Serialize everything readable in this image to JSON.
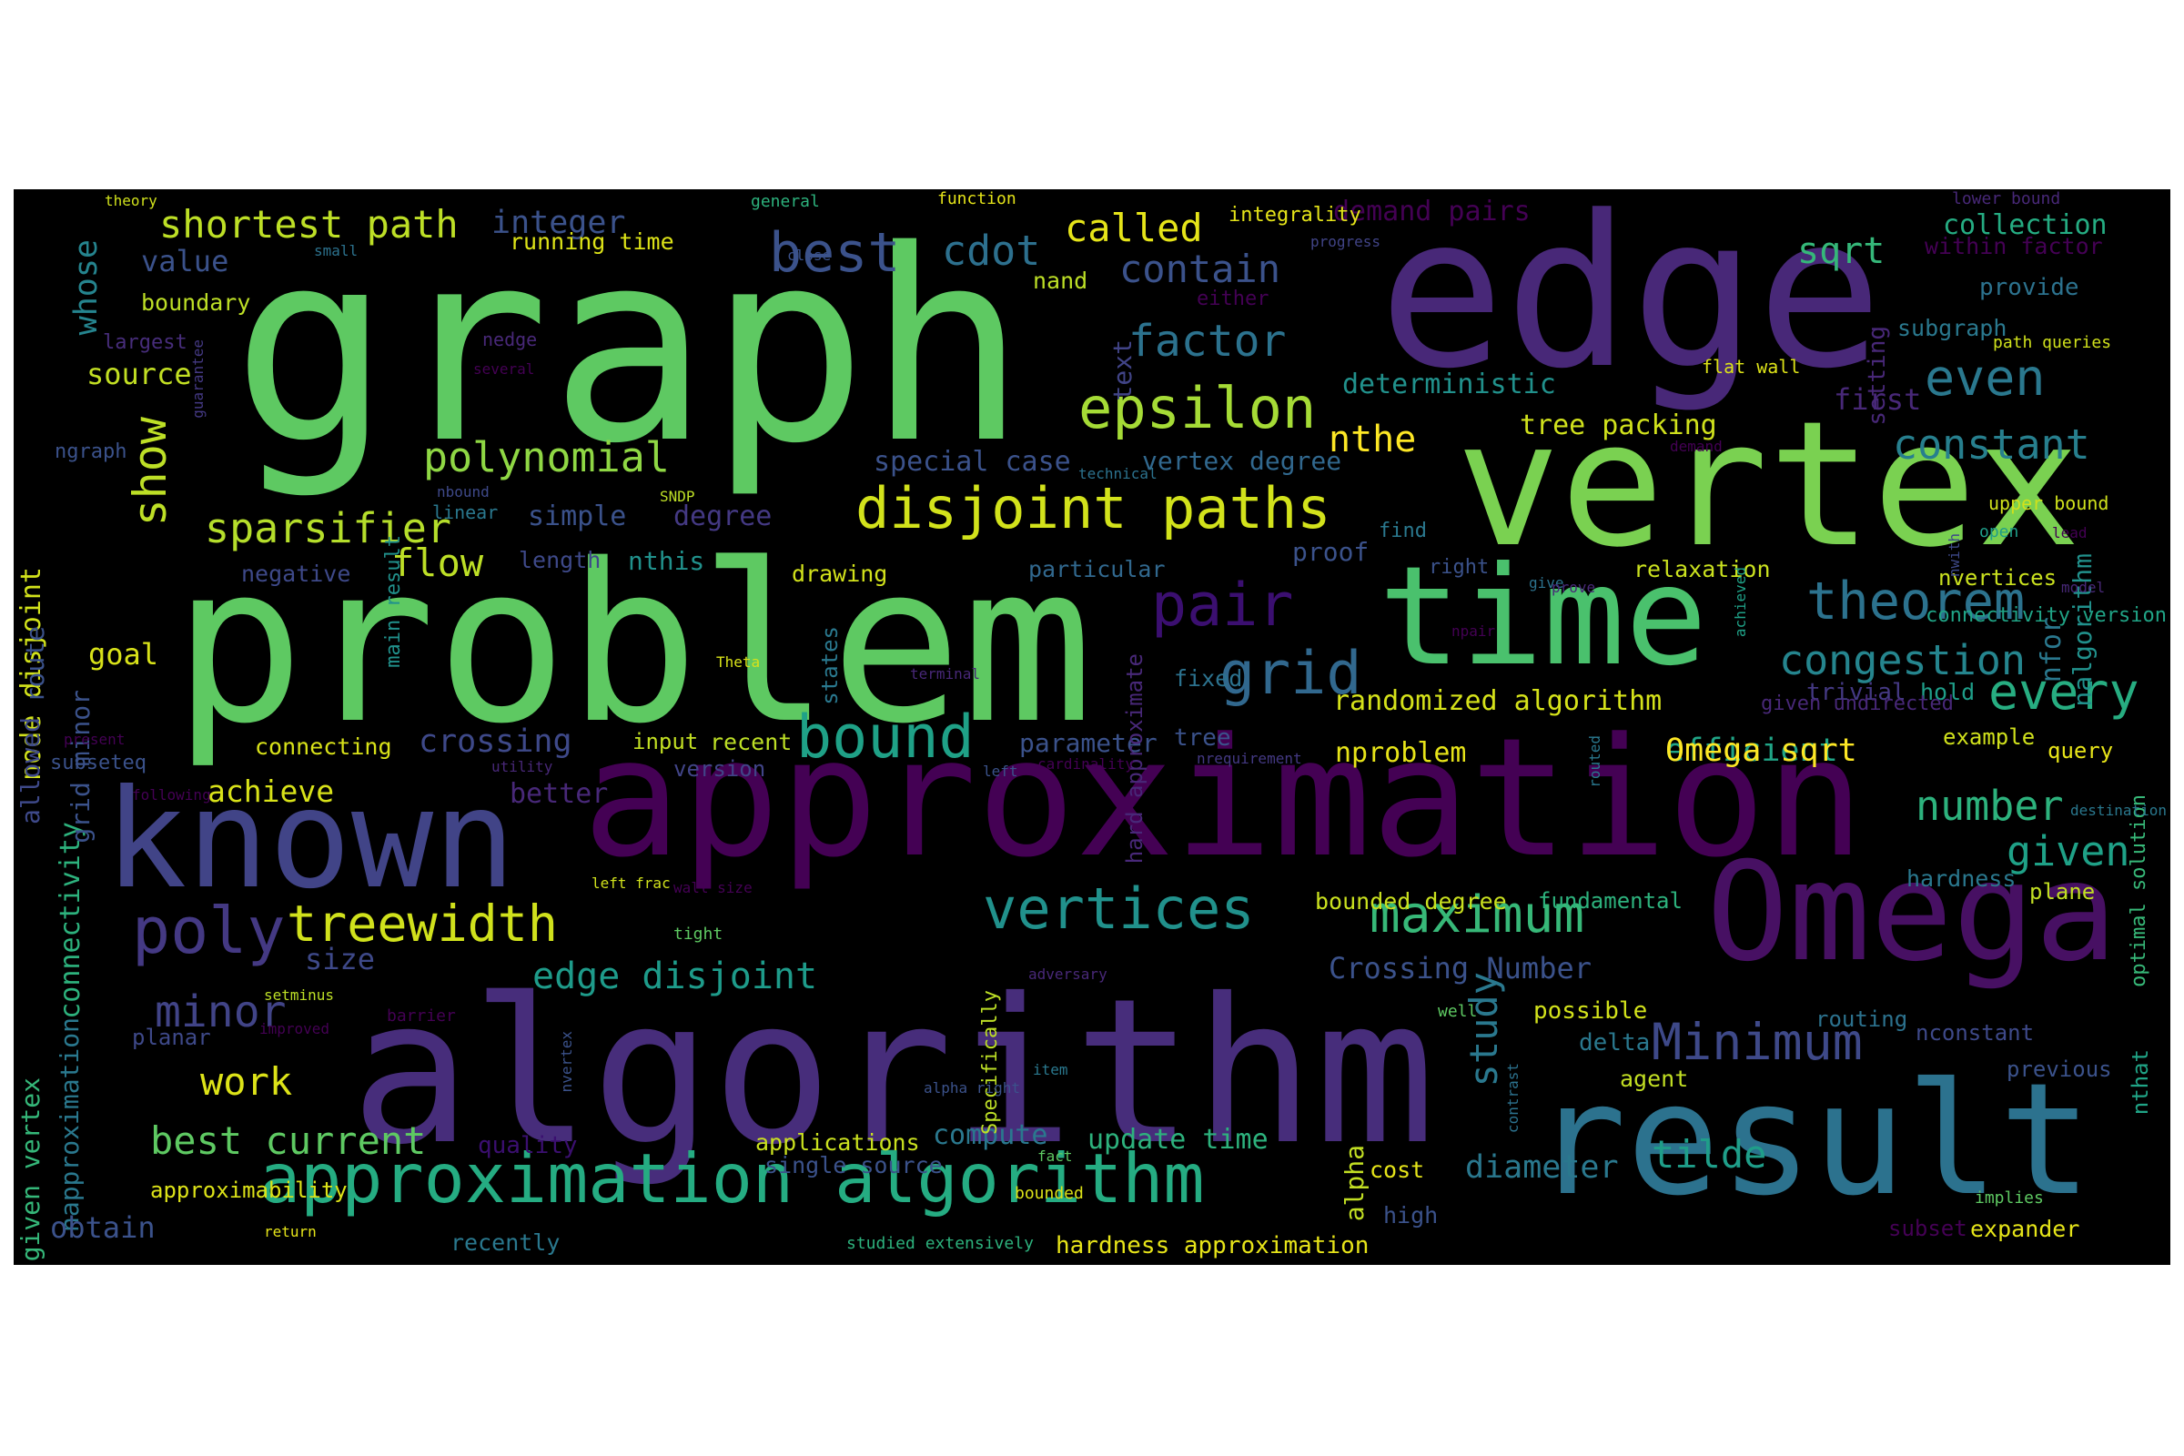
{
  "words": [
    {
      "text": "graph",
      "color": "#5ec962"
    },
    {
      "text": "edge",
      "color": "#482878"
    },
    {
      "text": "vertex",
      "color": "#7ad151"
    },
    {
      "text": "problem",
      "color": "#5ec962"
    },
    {
      "text": "time",
      "color": "#4ac16d"
    },
    {
      "text": "approximation",
      "color": "#440154"
    },
    {
      "text": "known",
      "color": "#414487"
    },
    {
      "text": "Omega",
      "color": "#471063"
    },
    {
      "text": "algorithm",
      "color": "#472d7b"
    },
    {
      "text": "result",
      "color": "#2c728e"
    },
    {
      "text": "approximation algorithm",
      "color": "#25ac82"
    },
    {
      "text": "disjoint paths",
      "color": "#d2e21b"
    },
    {
      "text": "vertices",
      "color": "#21918c"
    },
    {
      "text": "maximum",
      "color": "#37b878"
    },
    {
      "text": "bound",
      "color": "#1fa187"
    },
    {
      "text": "theorem",
      "color": "#2c728e"
    },
    {
      "text": "pair",
      "color": "#3b0f70"
    },
    {
      "text": "grid",
      "color": "#31688e"
    },
    {
      "text": "best",
      "color": "#3b528b"
    },
    {
      "text": "epsilon",
      "color": "#a5db36"
    },
    {
      "text": "poly",
      "color": "#443983"
    },
    {
      "text": "treewidth",
      "color": "#d0e11c"
    },
    {
      "text": "Minimum",
      "color": "#3e4989"
    },
    {
      "text": "every",
      "color": "#27ad81"
    },
    {
      "text": "even",
      "color": "#2a788e"
    },
    {
      "text": "show",
      "color": "#bddf26"
    },
    {
      "text": "sparsifier",
      "color": "#b5de2b"
    },
    {
      "text": "polynomial",
      "color": "#8fd744"
    },
    {
      "text": "shortest path",
      "color": "#bddf26"
    },
    {
      "text": "best current",
      "color": "#5ec962"
    },
    {
      "text": "study",
      "color": "#2a788e"
    },
    {
      "text": "congestion",
      "color": "#25858e"
    },
    {
      "text": "factor",
      "color": "#2c728e"
    },
    {
      "text": "minor",
      "color": "#414487"
    },
    {
      "text": "number",
      "color": "#2db27d"
    },
    {
      "text": "given",
      "color": "#1fa187"
    },
    {
      "text": "constant",
      "color": "#277f8e"
    },
    {
      "text": "called",
      "color": "#e5e419"
    },
    {
      "text": "contain",
      "color": "#3b528b"
    },
    {
      "text": "cdot",
      "color": "#2d708e"
    },
    {
      "text": "work",
      "color": "#dde318"
    },
    {
      "text": "tilde",
      "color": "#1f9e89"
    },
    {
      "text": "edge disjoint",
      "color": "#1e9b8a"
    },
    {
      "text": "integer",
      "color": "#3b528b"
    },
    {
      "text": "flow",
      "color": "#bddf26"
    },
    {
      "text": "nthe",
      "color": "#fde725"
    },
    {
      "text": "sqrt",
      "color": "#35b779"
    },
    {
      "text": "efficient",
      "color": "#20a486"
    },
    {
      "text": "Omega sqrt",
      "color": "#fde725"
    },
    {
      "text": "Crossing Number",
      "color": "#3b528b"
    },
    {
      "text": "crossing",
      "color": "#3e4989"
    },
    {
      "text": "diameter",
      "color": "#2a788e"
    },
    {
      "text": "source",
      "color": "#c2df23"
    },
    {
      "text": "goal",
      "color": "#d8e219"
    },
    {
      "text": "achieve",
      "color": "#d8e219"
    },
    {
      "text": "nproblem",
      "color": "#e7e419"
    },
    {
      "text": "randomized algorithm",
      "color": "#d5e21a"
    },
    {
      "text": "value",
      "color": "#3b528b"
    },
    {
      "text": "collection",
      "color": "#25ac82"
    },
    {
      "text": "nalgorithm",
      "color": "#21918c"
    },
    {
      "text": "whose",
      "color": "#25848e"
    },
    {
      "text": "node disjoint",
      "color": "#d2e21b"
    },
    {
      "text": "connectivity",
      "color": "#2db27d"
    },
    {
      "text": "given vertex",
      "color": "#35b779"
    },
    {
      "text": "napproximation",
      "color": "#2a788e"
    },
    {
      "text": "obtain",
      "color": "#3b528b"
    },
    {
      "text": "size",
      "color": "#3e4989"
    },
    {
      "text": "planar",
      "color": "#3e4989"
    },
    {
      "text": "deterministic",
      "color": "#21918c"
    },
    {
      "text": "special case",
      "color": "#3b528b"
    },
    {
      "text": "vertex degree",
      "color": "#31688e"
    },
    {
      "text": "tree packing",
      "color": "#d0e11c"
    },
    {
      "text": "running time",
      "color": "#dde318"
    },
    {
      "text": "demand pairs",
      "color": "#440154"
    },
    {
      "text": "within factor",
      "color": "#440154"
    },
    {
      "text": "nfor",
      "color": "#2a788e"
    },
    {
      "text": "first",
      "color": "#482878"
    },
    {
      "text": "provide",
      "color": "#2c728e"
    },
    {
      "text": "subgraph",
      "color": "#2a788e"
    },
    {
      "text": "simple",
      "color": "#3b528b"
    },
    {
      "text": "degree",
      "color": "#443983"
    },
    {
      "text": "nthis",
      "color": "#21918c"
    },
    {
      "text": "negative",
      "color": "#3e4989"
    },
    {
      "text": "length",
      "color": "#3e4989"
    },
    {
      "text": "particular",
      "color": "#31688e"
    },
    {
      "text": "proof",
      "color": "#3b528b"
    },
    {
      "text": "relaxation",
      "color": "#cae11f"
    },
    {
      "text": "nvertices",
      "color": "#cae11f"
    },
    {
      "text": "drawing",
      "color": "#d2e21b"
    },
    {
      "text": "boundary",
      "color": "#bddf26"
    },
    {
      "text": "nand",
      "color": "#bddf26"
    },
    {
      "text": "text",
      "color": "#414487"
    },
    {
      "text": "setting",
      "color": "#482878"
    },
    {
      "text": "connecting",
      "color": "#d8e219"
    },
    {
      "text": "input",
      "color": "#c2df23"
    },
    {
      "text": "recent",
      "color": "#bddf26"
    },
    {
      "text": "version",
      "color": "#414487"
    },
    {
      "text": "parameter",
      "color": "#3b528b"
    },
    {
      "text": "tree",
      "color": "#3b528b"
    },
    {
      "text": "better",
      "color": "#482878"
    },
    {
      "text": "fixed",
      "color": "#2c728e"
    },
    {
      "text": "trivial",
      "color": "#443983"
    },
    {
      "text": "hold",
      "color": "#1f9e89"
    },
    {
      "text": "given undirected",
      "color": "#482878"
    },
    {
      "text": "example",
      "color": "#d0e11c"
    },
    {
      "text": "query",
      "color": "#e7e419"
    },
    {
      "text": "subseteq",
      "color": "#3b528b"
    },
    {
      "text": "update time",
      "color": "#2db27d"
    },
    {
      "text": "compute",
      "color": "#2a788e"
    },
    {
      "text": "applications",
      "color": "#cae11f"
    },
    {
      "text": "quality",
      "color": "#3b0f70"
    },
    {
      "text": "single source",
      "color": "#3b528b"
    },
    {
      "text": "bounded degree",
      "color": "#cae11f"
    },
    {
      "text": "fundamental",
      "color": "#2db27d"
    },
    {
      "text": "possible",
      "color": "#d2e21b"
    },
    {
      "text": "delta",
      "color": "#2a788e"
    },
    {
      "text": "agent",
      "color": "#c2df23"
    },
    {
      "text": "nconstant",
      "color": "#3e4989"
    },
    {
      "text": "previous",
      "color": "#3b528b"
    },
    {
      "text": "routing",
      "color": "#2c728e"
    },
    {
      "text": "hardness",
      "color": "#2a788e"
    },
    {
      "text": "plane",
      "color": "#c2df23"
    },
    {
      "text": "cost",
      "color": "#e5e419"
    },
    {
      "text": "high",
      "color": "#3b528b"
    },
    {
      "text": "alpha",
      "color": "#c2df23"
    },
    {
      "text": "subset",
      "color": "#440154"
    },
    {
      "text": "expander",
      "color": "#e5e419"
    },
    {
      "text": "recently",
      "color": "#2a788e"
    },
    {
      "text": "hardness approximation",
      "color": "#e7e419"
    },
    {
      "text": "approximability",
      "color": "#dde318"
    },
    {
      "text": "allowed",
      "color": "#3e4989"
    },
    {
      "text": "grid minor",
      "color": "#3b528b"
    },
    {
      "text": "ngraph",
      "color": "#3b528b"
    },
    {
      "text": "route",
      "color": "#3b528b"
    },
    {
      "text": "nthat",
      "color": "#20a486"
    },
    {
      "text": "optimal solution",
      "color": "#37b878"
    },
    {
      "text": "connectivity version",
      "color": "#20a486"
    },
    {
      "text": "states",
      "color": "#2a788e"
    },
    {
      "text": "main result",
      "color": "#21918c"
    },
    {
      "text": "hard approximate",
      "color": "#482878"
    },
    {
      "text": "largest",
      "color": "#472d7b"
    },
    {
      "text": "linear",
      "color": "#2a788e"
    },
    {
      "text": "either",
      "color": "#440154"
    },
    {
      "text": "integrality",
      "color": "#e5e419"
    },
    {
      "text": "nedge",
      "color": "#482878"
    },
    {
      "text": "flat wall",
      "color": "#dde318"
    },
    {
      "text": "path queries",
      "color": "#d0e11c"
    },
    {
      "text": "upper bound",
      "color": "#d0e11c"
    },
    {
      "text": "lower bound",
      "color": "#482878"
    },
    {
      "text": "function",
      "color": "#e5e419"
    },
    {
      "text": "theory",
      "color": "#d0e11c"
    },
    {
      "text": "general",
      "color": "#2db27d"
    },
    {
      "text": "small",
      "color": "#2c728e"
    },
    {
      "text": "close",
      "color": "#3b528b"
    },
    {
      "text": "progress",
      "color": "#414487"
    },
    {
      "text": "several",
      "color": "#440154"
    },
    {
      "text": "guarantee",
      "color": "#443983"
    },
    {
      "text": "nbound",
      "color": "#3e4989"
    },
    {
      "text": "technical",
      "color": "#2c728e"
    },
    {
      "text": "SNDP",
      "color": "#bddf26"
    },
    {
      "text": "find",
      "color": "#2a788e"
    },
    {
      "text": "right",
      "color": "#3b528b"
    },
    {
      "text": "give",
      "color": "#2c728e"
    },
    {
      "text": "prove",
      "color": "#482878"
    },
    {
      "text": "demand",
      "color": "#440154"
    },
    {
      "text": "open",
      "color": "#1f9e89"
    },
    {
      "text": "nwith",
      "color": "#3e4989"
    },
    {
      "text": "lead",
      "color": "#440154"
    },
    {
      "text": "model",
      "color": "#482878"
    },
    {
      "text": "npair",
      "color": "#440154"
    },
    {
      "text": "Theta",
      "color": "#d8e219"
    },
    {
      "text": "terminal",
      "color": "#482878"
    },
    {
      "text": "achieved",
      "color": "#1fa187"
    },
    {
      "text": "present",
      "color": "#440154"
    },
    {
      "text": "utility",
      "color": "#482878"
    },
    {
      "text": "nrequirement",
      "color": "#443983"
    },
    {
      "text": "cardinality",
      "color": "#440154"
    },
    {
      "text": "left",
      "color": "#3b528b"
    },
    {
      "text": "routed",
      "color": "#2a788e"
    },
    {
      "text": "following",
      "color": "#440154"
    },
    {
      "text": "left frac",
      "color": "#d0e11c"
    },
    {
      "text": "tight",
      "color": "#5ec962"
    },
    {
      "text": "adversary",
      "color": "#482878"
    },
    {
      "text": "bounded",
      "color": "#dde318"
    },
    {
      "text": "wall size",
      "color": "#440154"
    },
    {
      "text": "destination",
      "color": "#2a788e"
    },
    {
      "text": "implies",
      "color": "#5ec962"
    },
    {
      "text": "setminus",
      "color": "#bddf26"
    },
    {
      "text": "improved",
      "color": "#440154"
    },
    {
      "text": "barrier",
      "color": "#440154"
    },
    {
      "text": "well",
      "color": "#5ec962"
    },
    {
      "text": "return",
      "color": "#e5e419"
    },
    {
      "text": "nvertex",
      "color": "#3b528b"
    },
    {
      "text": "Specifically",
      "color": "#bddf26"
    },
    {
      "text": "item",
      "color": "#2a788e"
    },
    {
      "text": "alpha right",
      "color": "#3b528b"
    },
    {
      "text": "contrast",
      "color": "#2c728e"
    },
    {
      "text": "fact",
      "color": "#5ec962"
    },
    {
      "text": "studied extensively",
      "color": "#2db27d"
    }
  ]
}
